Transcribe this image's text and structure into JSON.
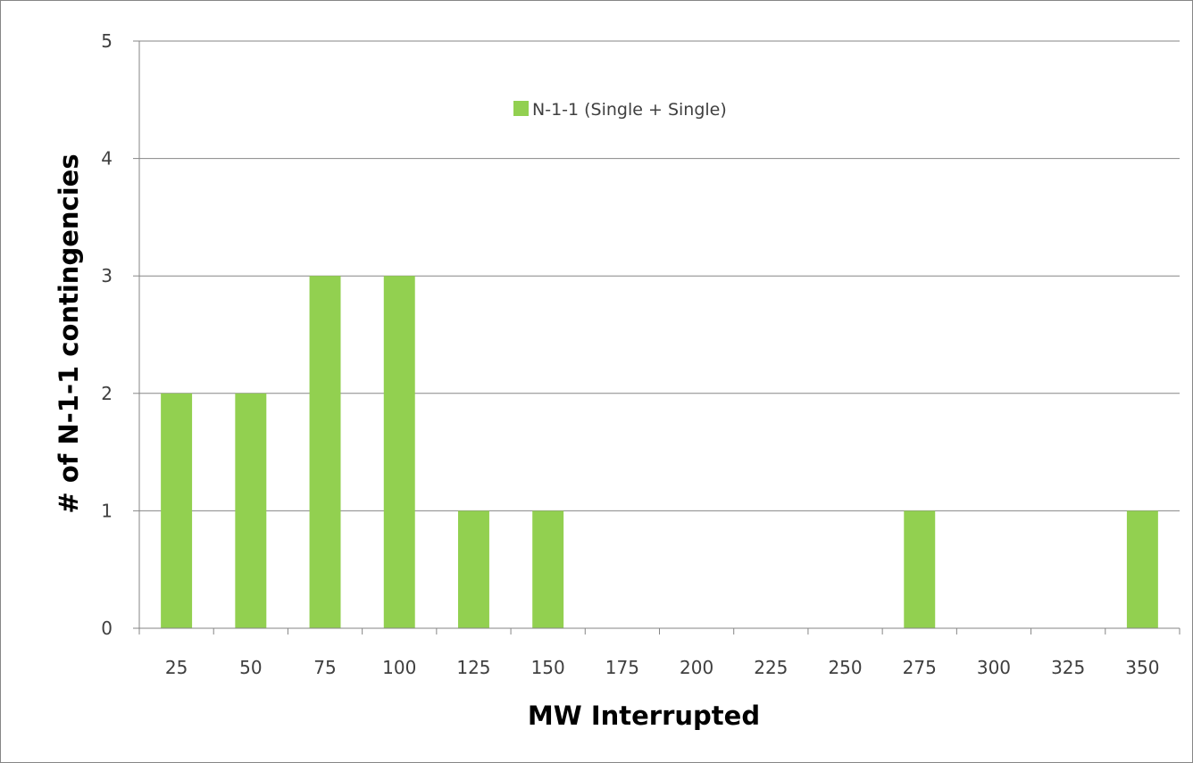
{
  "chart_data": {
    "type": "bar",
    "title": "",
    "xlabel": "MW Interrupted",
    "ylabel": "# of N-1-1 contingencies",
    "categories": [
      "25",
      "50",
      "75",
      "100",
      "125",
      "150",
      "175",
      "200",
      "225",
      "250",
      "275",
      "300",
      "325",
      "350"
    ],
    "series": [
      {
        "name": "N-1-1 (Single + Single)",
        "values": [
          2,
          2,
          3,
          3,
          1,
          1,
          0,
          0,
          0,
          0,
          1,
          0,
          0,
          1
        ],
        "color": "#92d050"
      }
    ],
    "ylim": [
      0,
      5
    ],
    "yticks": [
      0,
      1,
      2,
      3,
      4,
      5
    ],
    "grid": true,
    "legend": "top-center",
    "colors": {
      "bar": "#92d050",
      "grid": "#868686",
      "axis": "#868686"
    }
  }
}
